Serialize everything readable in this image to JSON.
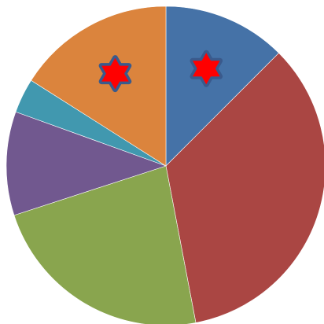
{
  "chart_data": {
    "type": "pie",
    "title": "",
    "start_angle_deg": 0,
    "direction": "clockwise",
    "slices": [
      {
        "value": 12.5,
        "color": "#4572A7",
        "marked": true,
        "marker_icon": "star-icon"
      },
      {
        "value": 34.5,
        "color": "#AA4643",
        "marked": false
      },
      {
        "value": 23.0,
        "color": "#89A54E",
        "marked": false
      },
      {
        "value": 10.5,
        "color": "#71588F",
        "marked": false
      },
      {
        "value": 3.5,
        "color": "#4198AF",
        "marked": false
      },
      {
        "value": 16.0,
        "color": "#DB843D",
        "marked": true,
        "marker_icon": "star-icon"
      }
    ],
    "marker_colors": {
      "fill": "#FF0000",
      "outline": "#3A5A8C"
    }
  }
}
